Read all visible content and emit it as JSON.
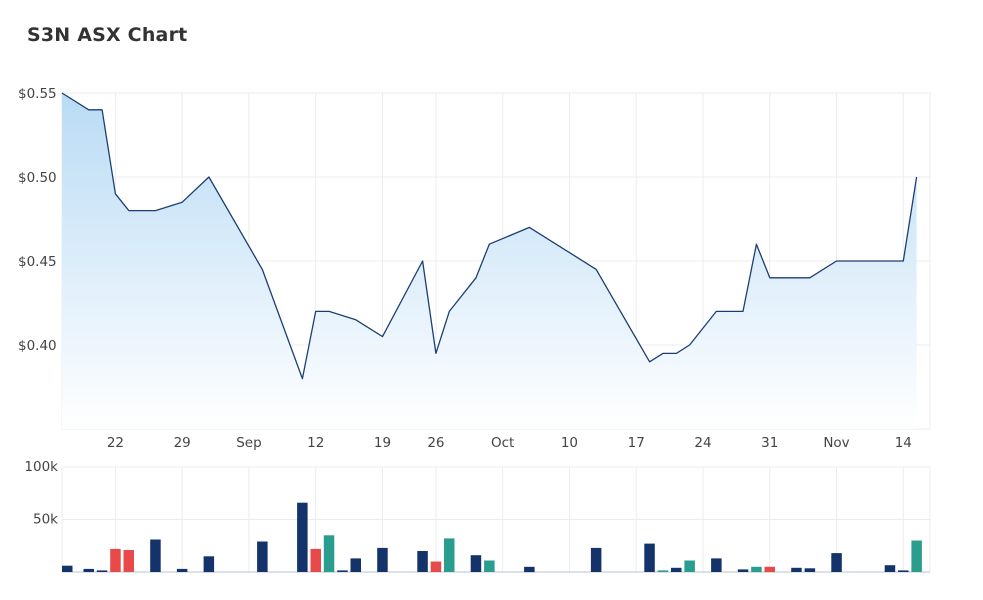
{
  "title": "S3N ASX Chart",
  "colors": {
    "price_line": "#1c3f72",
    "area_top": "#b9dbf5",
    "area_bottom": "#ffffff",
    "vol_navy": "#14336b",
    "vol_red": "#e84a4a",
    "vol_teal": "#2a9d8f",
    "grid": "#ececec"
  },
  "chart_data": [
    {
      "type": "area",
      "title": "",
      "ylabel": "",
      "xlabel": "",
      "ylim": [
        0.35,
        0.55
      ],
      "y_tick_labels": [
        {
          "value": 0.55,
          "label": "$0.55"
        },
        {
          "value": 0.5,
          "label": "$0.50"
        },
        {
          "value": 0.45,
          "label": "$0.45"
        },
        {
          "value": 0.4,
          "label": "$0.40"
        }
      ],
      "x_tick_labels": [
        {
          "day": 4,
          "label": "22"
        },
        {
          "day": 9,
          "label": "29"
        },
        {
          "day": 14,
          "label": "Sep"
        },
        {
          "day": 19,
          "label": "12"
        },
        {
          "day": 24,
          "label": "19"
        },
        {
          "day": 28,
          "label": "26"
        },
        {
          "day": 33,
          "label": "Oct"
        },
        {
          "day": 38,
          "label": "10"
        },
        {
          "day": 43,
          "label": "17"
        },
        {
          "day": 48,
          "label": "24"
        },
        {
          "day": 53,
          "label": "31"
        },
        {
          "day": 58,
          "label": "Nov"
        },
        {
          "day": 63,
          "label": "14"
        }
      ],
      "x_domain": [
        0,
        65
      ],
      "grid": true,
      "series": [
        {
          "points": [
            [
              0,
              0.55
            ],
            [
              2,
              0.54
            ],
            [
              3,
              0.54
            ],
            [
              4,
              0.49
            ],
            [
              5,
              0.48
            ],
            [
              7,
              0.48
            ],
            [
              9,
              0.485
            ],
            [
              11,
              0.5
            ],
            [
              15,
              0.445
            ],
            [
              18,
              0.38
            ],
            [
              19,
              0.42
            ],
            [
              20,
              0.42
            ],
            [
              22,
              0.415
            ],
            [
              24,
              0.405
            ],
            [
              27,
              0.45
            ],
            [
              28,
              0.395
            ],
            [
              29,
              0.42
            ],
            [
              31,
              0.44
            ],
            [
              32,
              0.46
            ],
            [
              35,
              0.47
            ],
            [
              40,
              0.445
            ],
            [
              44,
              0.39
            ],
            [
              45,
              0.395
            ],
            [
              46,
              0.395
            ],
            [
              47,
              0.4
            ],
            [
              49,
              0.42
            ],
            [
              51,
              0.42
            ],
            [
              52,
              0.46
            ],
            [
              53,
              0.44
            ],
            [
              56,
              0.44
            ],
            [
              58,
              0.45
            ],
            [
              63,
              0.45
            ],
            [
              64,
              0.5
            ]
          ]
        }
      ]
    },
    {
      "type": "bar",
      "title": "",
      "ylim": [
        0,
        100000
      ],
      "y_tick_labels": [
        {
          "value": 100000,
          "label": "100k"
        },
        {
          "value": 50000,
          "label": "50k"
        }
      ],
      "bars": [
        {
          "day": 0,
          "value": 6000,
          "color": "navy"
        },
        {
          "day": 2,
          "value": 3000,
          "color": "navy"
        },
        {
          "day": 3,
          "value": 1500,
          "color": "navy"
        },
        {
          "day": 4,
          "value": 22000,
          "color": "red"
        },
        {
          "day": 5,
          "value": 21000,
          "color": "red"
        },
        {
          "day": 7,
          "value": 31000,
          "color": "navy"
        },
        {
          "day": 9,
          "value": 3000,
          "color": "navy"
        },
        {
          "day": 11,
          "value": 15000,
          "color": "navy"
        },
        {
          "day": 15,
          "value": 29000,
          "color": "navy"
        },
        {
          "day": 18,
          "value": 66000,
          "color": "navy"
        },
        {
          "day": 19,
          "value": 22000,
          "color": "red"
        },
        {
          "day": 20,
          "value": 35000,
          "color": "teal"
        },
        {
          "day": 21,
          "value": 1500,
          "color": "navy"
        },
        {
          "day": 22,
          "value": 13000,
          "color": "navy"
        },
        {
          "day": 24,
          "value": 23000,
          "color": "navy"
        },
        {
          "day": 27,
          "value": 20000,
          "color": "navy"
        },
        {
          "day": 28,
          "value": 10000,
          "color": "red"
        },
        {
          "day": 29,
          "value": 32000,
          "color": "teal"
        },
        {
          "day": 31,
          "value": 16000,
          "color": "navy"
        },
        {
          "day": 32,
          "value": 11000,
          "color": "teal"
        },
        {
          "day": 35,
          "value": 5000,
          "color": "navy"
        },
        {
          "day": 40,
          "value": 23000,
          "color": "navy"
        },
        {
          "day": 44,
          "value": 27000,
          "color": "navy"
        },
        {
          "day": 45,
          "value": 1500,
          "color": "teal"
        },
        {
          "day": 46,
          "value": 4000,
          "color": "navy"
        },
        {
          "day": 47,
          "value": 11000,
          "color": "teal"
        },
        {
          "day": 49,
          "value": 13000,
          "color": "navy"
        },
        {
          "day": 51,
          "value": 2500,
          "color": "navy"
        },
        {
          "day": 52,
          "value": 5000,
          "color": "teal"
        },
        {
          "day": 53,
          "value": 5000,
          "color": "red"
        },
        {
          "day": 55,
          "value": 4000,
          "color": "navy"
        },
        {
          "day": 56,
          "value": 3500,
          "color": "navy"
        },
        {
          "day": 58,
          "value": 18000,
          "color": "navy"
        },
        {
          "day": 62,
          "value": 6500,
          "color": "navy"
        },
        {
          "day": 63,
          "value": 1500,
          "color": "navy"
        },
        {
          "day": 64,
          "value": 30000,
          "color": "teal"
        }
      ]
    }
  ]
}
